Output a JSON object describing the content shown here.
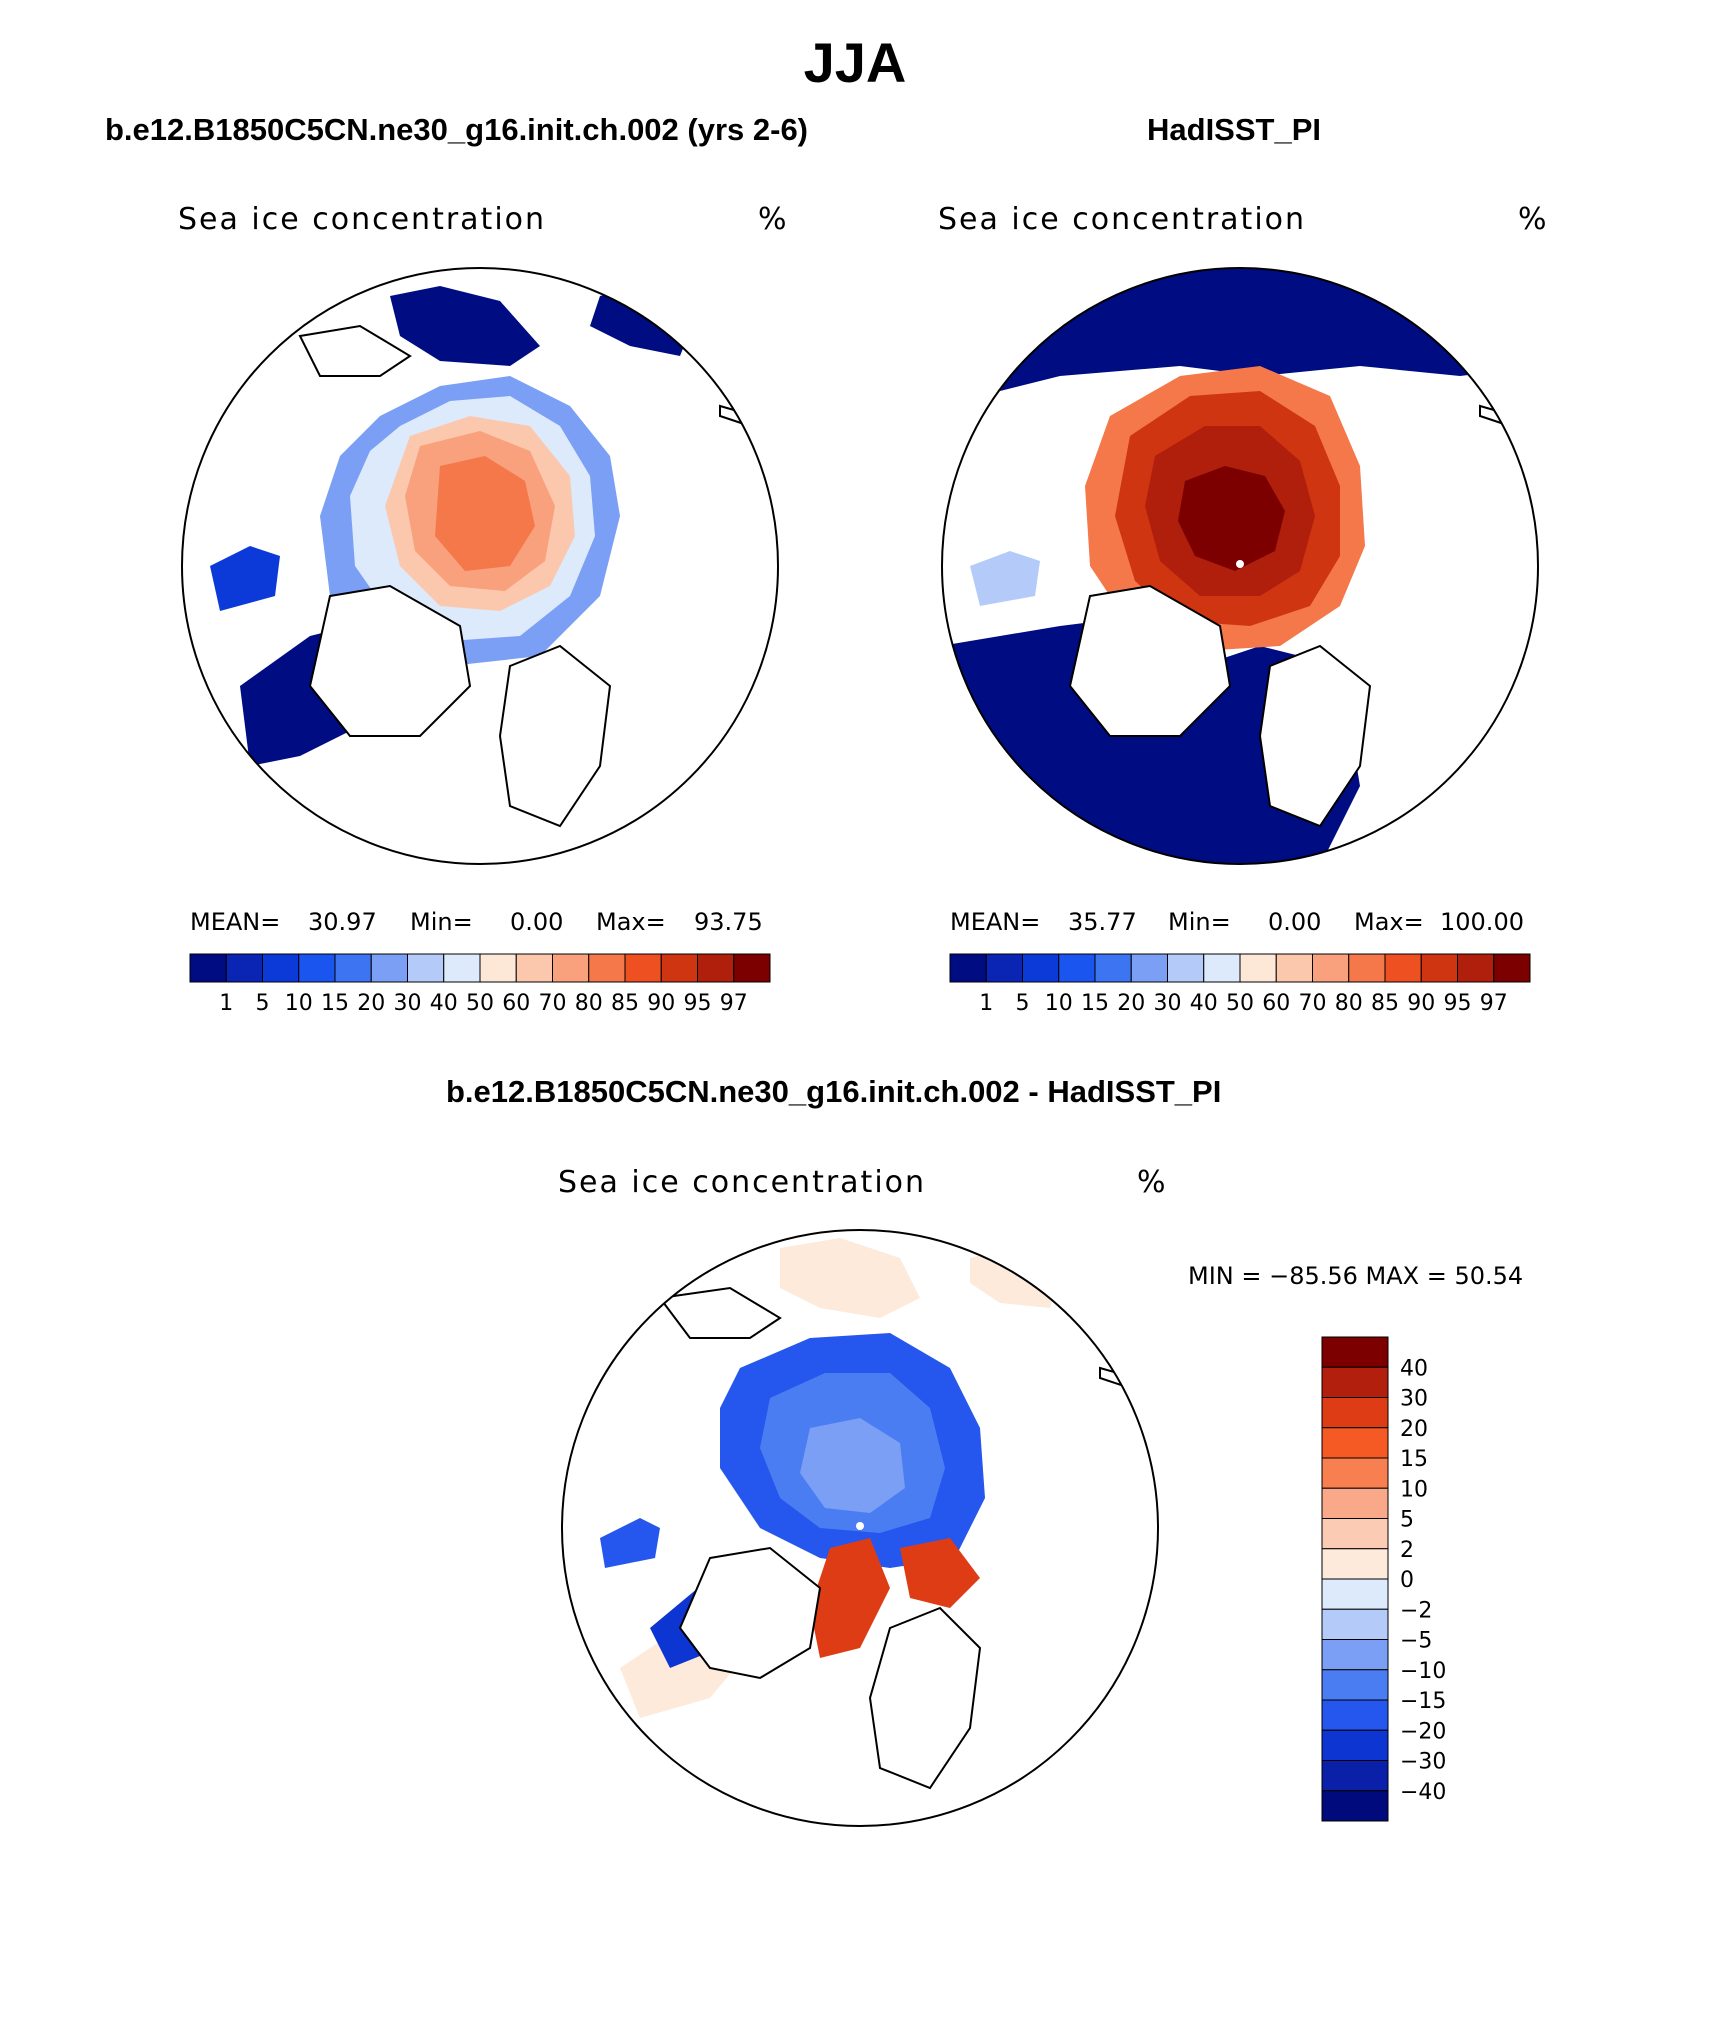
{
  "season": "JJA",
  "panels": [
    {
      "title": "b.e12.B1850C5CN.ne30_g16.init.ch.002 (yrs 2-6)",
      "field": "Sea ice concentration",
      "units": "%",
      "mean_label": "MEAN=",
      "mean": "30.97",
      "min_label": "Min=",
      "min": "0.00",
      "max_label": "Max=",
      "max": "93.75"
    },
    {
      "title": "HadISST_PI",
      "field": "Sea ice concentration",
      "units": "%",
      "mean_label": "MEAN=",
      "mean": "35.77",
      "min_label": "Min=",
      "min": "0.00",
      "max_label": "Max=",
      "max": "100.00"
    }
  ],
  "diff": {
    "title": "b.e12.B1850C5CN.ne30_g16.init.ch.002 - HadISST_PI",
    "field": "Sea ice concentration",
    "units": "%",
    "minmax": "MIN = −85.56 MAX =   50.54"
  },
  "colorbar_levels": [
    "1",
    "5",
    "10",
    "15",
    "20",
    "30",
    "40",
    "50",
    "60",
    "70",
    "80",
    "85",
    "90",
    "95",
    "97"
  ],
  "colorbar_colors": [
    "#000c82",
    "#0a24b4",
    "#0c3ad8",
    "#1b55f0",
    "#3d74f2",
    "#7a9ff4",
    "#b4cbf9",
    "#dceafb",
    "#fde7d7",
    "#fbc8ae",
    "#f9a07c",
    "#f47849",
    "#ee5021",
    "#cf3511",
    "#b01e0c",
    "#7d0000"
  ],
  "diff_levels": [
    "40",
    "30",
    "20",
    "15",
    "10",
    "5",
    "2",
    "0",
    "−2",
    "−5",
    "−10",
    "−15",
    "−20",
    "−30",
    "−40"
  ],
  "diff_colors_top_to_bottom": [
    "#7d0000",
    "#b31f0d",
    "#dd3c15",
    "#f55a25",
    "#f77f50",
    "#f9a889",
    "#fbcbb4",
    "#fdeadb",
    "#dceafb",
    "#b4cbf9",
    "#7a9ff4",
    "#4b7df2",
    "#2556ed",
    "#0c35d2",
    "#0a20a8",
    "#000a7c"
  ],
  "colors": {
    "deep_blue": "#000c82",
    "red_high": "#7d0000",
    "land": "#ffffff",
    "outline": "#000000"
  }
}
